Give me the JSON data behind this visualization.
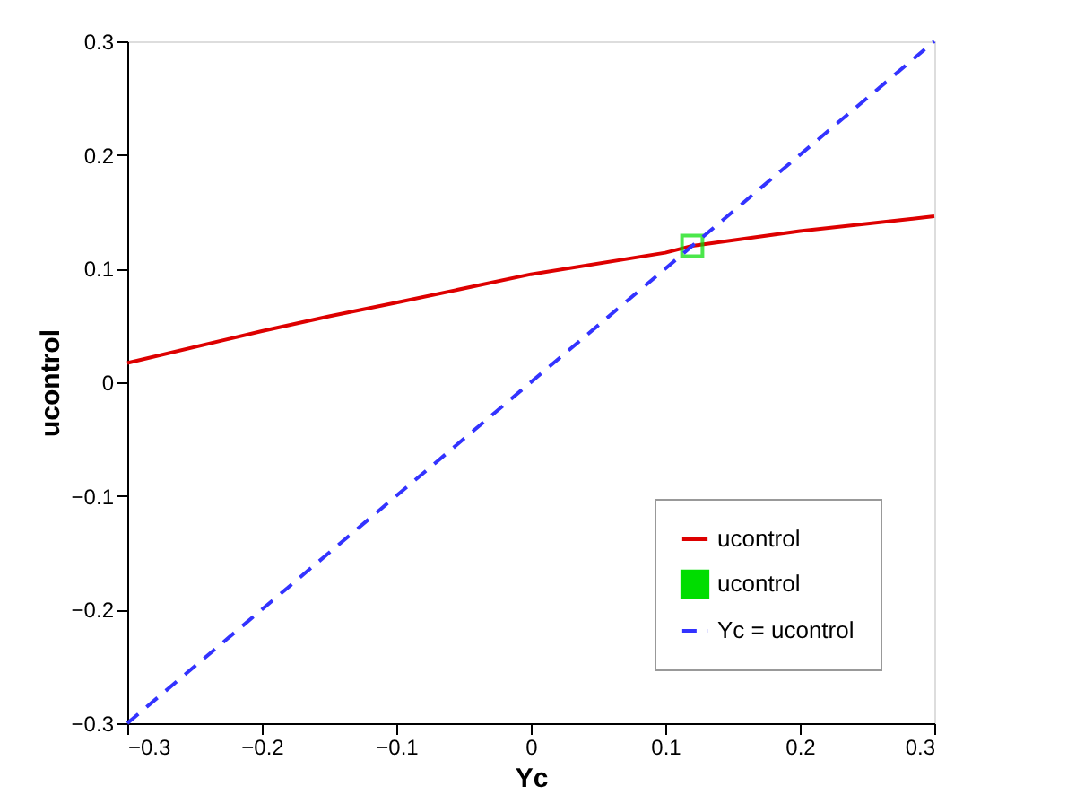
{
  "chart_data": {
    "type": "line",
    "xlabel": "Yc",
    "ylabel": "ucontrol",
    "xlim": [
      -0.3,
      0.3
    ],
    "ylim": [
      -0.3,
      0.3
    ],
    "xticks": [
      -0.3,
      -0.2,
      -0.1,
      0,
      0.1,
      0.2,
      0.3
    ],
    "yticks": [
      -0.3,
      -0.2,
      -0.1,
      0,
      0.1,
      0.2,
      0.3
    ],
    "grid": false,
    "legend": "bottom right",
    "series": [
      {
        "name": "ucontrol",
        "color": "#dd0000",
        "line_style": "solid",
        "x": [
          -0.3,
          -0.2,
          -0.15,
          -0.1,
          0,
          0.1,
          0.12,
          0.2,
          0.3
        ],
        "values": [
          0.017,
          0.045,
          0.058,
          0.07,
          0.095,
          0.114,
          0.12,
          0.133,
          0.146
        ]
      },
      {
        "name": "ucontrol ",
        "type": "scatter",
        "color": "#00dd00",
        "marker": "square",
        "x": [
          0.12
        ],
        "values": [
          0.12
        ]
      },
      {
        "name": "Yc = ucontrol",
        "color": "#3333ff",
        "line_style": "dashed",
        "x": [
          -0.3,
          0.3
        ],
        "values": [
          -0.3,
          0.3
        ]
      }
    ]
  }
}
